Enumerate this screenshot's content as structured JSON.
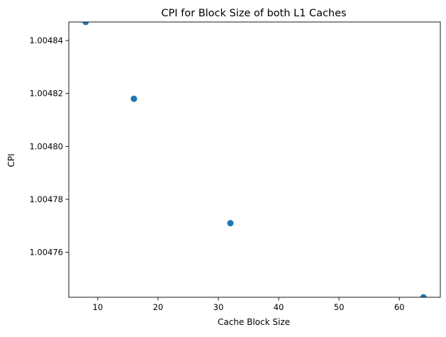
{
  "chart_data": {
    "type": "scatter",
    "title": "CPI for Block Size of both L1 Caches",
    "xlabel": "Cache Block Size",
    "ylabel": "CPI",
    "x": [
      8,
      16,
      32,
      64
    ],
    "y": [
      1.004847,
      1.004818,
      1.004771,
      1.004743
    ],
    "xlim": [
      5.2,
      66.8
    ],
    "ylim": [
      1.004743,
      1.004847
    ],
    "xticks": [
      10,
      20,
      30,
      40,
      50,
      60
    ],
    "xtick_labels": [
      "10",
      "20",
      "30",
      "40",
      "50",
      "60"
    ],
    "yticks": [
      1.00476,
      1.00478,
      1.0048,
      1.00482,
      1.00484
    ],
    "ytick_labels": [
      "1.00476",
      "1.00478",
      "1.00480",
      "1.00482",
      "1.00484"
    ],
    "grid": false,
    "legend": "none",
    "marker_color": "#1f77b4"
  }
}
